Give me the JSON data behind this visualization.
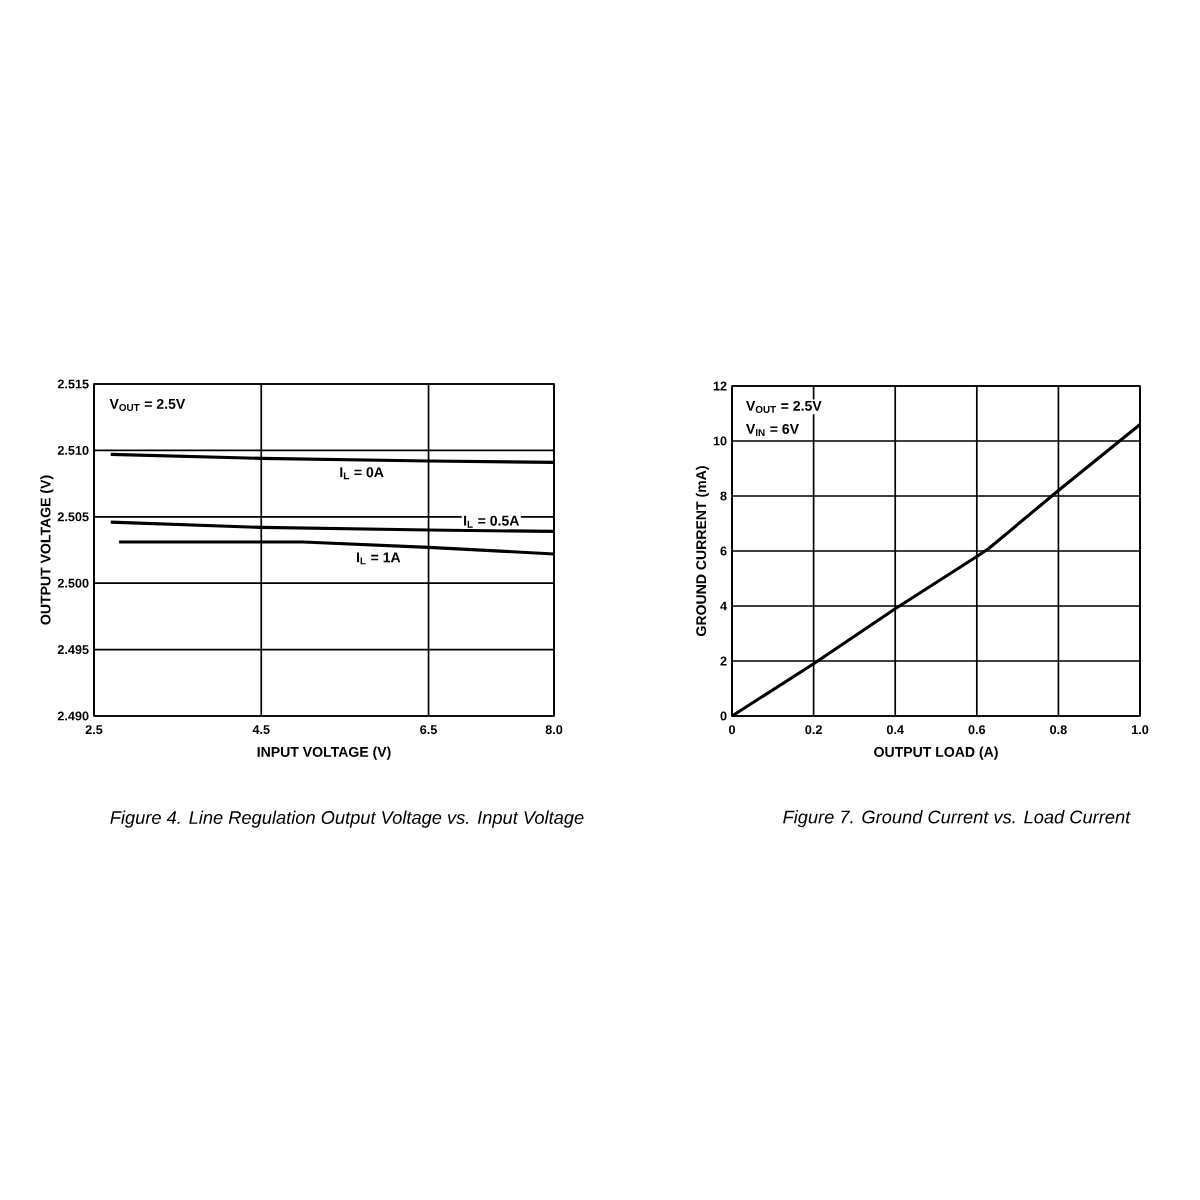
{
  "chart_data": [
    {
      "type": "line",
      "title": "Figure 4. Line Regulation Output Voltage vs. Input Voltage",
      "xlabel": "INPUT VOLTAGE (V)",
      "ylabel": "OUTPUT VOLTAGE (V)",
      "xlim": [
        2.5,
        8.0
      ],
      "xticks": [
        2.5,
        4.5,
        6.5,
        {
          "value": 8.0,
          "label": "8.0"
        }
      ],
      "ylim": [
        2.49,
        2.515
      ],
      "yticks": [
        {
          "value": 2.49,
          "label": "2.490"
        },
        {
          "value": 2.495,
          "label": "2.495"
        },
        {
          "value": 2.5,
          "label": "2.500"
        },
        {
          "value": 2.505,
          "label": "2.505"
        },
        {
          "value": 2.51,
          "label": "2.510"
        },
        {
          "value": 2.515,
          "label": "2.515"
        }
      ],
      "grid": true,
      "series": [
        {
          "name": "I$_{L}$ = 0A",
          "color": "#000000",
          "x": [
            2.7,
            4.5,
            6.5,
            8.0
          ],
          "values": [
            2.5097,
            2.5094,
            2.5092,
            2.5091
          ]
        },
        {
          "name": "I$_{L}$ = 0.5A",
          "color": "#000000",
          "x": [
            2.7,
            4.5,
            6.5,
            8.0
          ],
          "values": [
            2.5046,
            2.5042,
            2.504,
            2.5039
          ]
        },
        {
          "name": "I$_{L}$ = 1A",
          "color": "#000000",
          "x": [
            2.8,
            5.0,
            6.5,
            8.0
          ],
          "values": [
            2.5031,
            2.5031,
            2.5027,
            2.5022
          ]
        }
      ],
      "annotations": [
        "V$_{OUT}$ = 2.5V"
      ]
    },
    {
      "type": "line",
      "title": "Figure 7. Ground Current vs. Load Current",
      "xlabel": "OUTPUT LOAD (A)",
      "ylabel": "GROUND CURRENT (mA)",
      "xlim": [
        0,
        1.0
      ],
      "xticks": [
        0,
        0.2,
        0.4,
        0.6,
        0.8,
        {
          "value": 1.0,
          "label": "1.0"
        }
      ],
      "ylim": [
        0,
        12
      ],
      "yticks": [
        0,
        2,
        4,
        6,
        8,
        10,
        12
      ],
      "grid": true,
      "series": [
        {
          "color": "#000000",
          "x": [
            0,
            0.2,
            0.4,
            0.6,
            0.63,
            0.8,
            1.0
          ],
          "values": [
            0,
            1.9,
            3.9,
            5.8,
            6.1,
            8.2,
            10.6
          ]
        }
      ],
      "annotations": [
        "V$_{OUT}$ = 2.5V",
        "V$_{IN}$ = 6V"
      ]
    }
  ]
}
